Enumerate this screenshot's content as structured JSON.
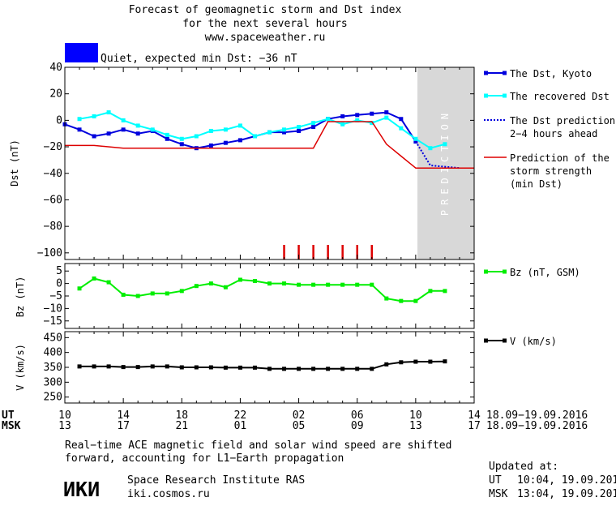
{
  "title_lines": [
    "Forecast of geomagnetic storm and Dst index",
    "for the next several hours",
    "www.spaceweather.ru"
  ],
  "status": {
    "text": "Quiet, expected min Dst: −36 nT",
    "color": "#0000ff"
  },
  "colors": {
    "dst_kyoto": "#0000dd",
    "dst_recovered": "#00ffff",
    "dst_prediction": "#0000dd",
    "storm_strength": "#dd0000",
    "bz": "#00ee00",
    "v": "#000000",
    "prediction_zone": "#d8d8d8"
  },
  "chart_data": [
    {
      "type": "line",
      "ylabel": "Dst (nT)",
      "ylim": [
        -105,
        40
      ],
      "yticks": [
        "40",
        "20",
        "0",
        "−20",
        "−40",
        "−60",
        "−80",
        "−100"
      ],
      "prediction_label": "PREDICTION",
      "legend": [
        {
          "lines": [
            "The Dst, Kyoto"
          ]
        },
        {
          "lines": [
            "The recovered Dst"
          ]
        },
        {
          "lines": [
            "The Dst prediction",
            "2−4 hours ahead"
          ]
        },
        {
          "lines": [
            "Prediction of the",
            "storm strength",
            "(min Dst)"
          ]
        }
      ],
      "series": [
        {
          "name": "The Dst, Kyoto",
          "x": [
            10,
            11,
            12,
            13,
            14,
            15,
            16,
            17,
            18,
            19,
            20,
            21,
            22,
            23,
            24,
            25,
            26,
            27,
            28,
            29,
            30,
            31,
            32,
            33,
            34
          ],
          "y": [
            -3,
            -7,
            -12,
            -10,
            -7,
            -10,
            -8,
            -14,
            -18,
            -21,
            -19,
            -17,
            -15,
            -12,
            -9,
            -9,
            -8,
            -5,
            1,
            3,
            4,
            5,
            6,
            1,
            -16
          ]
        },
        {
          "name": "The recovered Dst",
          "x": [
            11,
            12,
            13,
            14,
            15,
            16,
            17,
            18,
            19,
            20,
            21,
            22,
            23,
            24,
            25,
            26,
            27,
            28,
            29,
            30,
            31,
            32,
            33,
            34,
            35,
            36
          ],
          "y": [
            1,
            3,
            6,
            0,
            -4,
            -7,
            -11,
            -14,
            -12,
            -8,
            -7,
            -4,
            -12,
            -9,
            -7,
            -5,
            -2,
            1,
            -3,
            0,
            -2,
            2,
            -6,
            -14,
            -21,
            -18
          ]
        },
        {
          "name": "The Dst prediction 2−4 hours ahead",
          "x": [
            34,
            35,
            37
          ],
          "y": [
            -16,
            -34,
            -36
          ]
        },
        {
          "name": "Prediction of the storm strength (min Dst)",
          "x": [
            10,
            12,
            14,
            16,
            27,
            28,
            30,
            31,
            32,
            33,
            34,
            35,
            38
          ],
          "y": [
            -19,
            -19,
            -21,
            -21,
            -21,
            -1,
            -1,
            -1,
            -18,
            -27,
            -36,
            -36,
            -36
          ]
        }
      ],
      "storm_markers_x": [
        25,
        26,
        27,
        28,
        29,
        30,
        31
      ]
    },
    {
      "type": "line",
      "ylabel": "Bz (nT)",
      "ylim": [
        -18,
        8
      ],
      "yticks": [
        "5",
        "0",
        "−5",
        "−10",
        "−15"
      ],
      "legend": [
        {
          "lines": [
            "Bz (nT, GSM)"
          ]
        }
      ],
      "series": [
        {
          "name": "Bz (nT, GSM)",
          "x": [
            11,
            12,
            13,
            14,
            15,
            16,
            17,
            18,
            19,
            20,
            21,
            22,
            23,
            24,
            25,
            26,
            27,
            28,
            29,
            30,
            31,
            32,
            33,
            34,
            35,
            36
          ],
          "y": [
            -2,
            2,
            0.5,
            -4.5,
            -5,
            -4,
            -4,
            -3,
            -1,
            0,
            -1.5,
            1.5,
            1,
            0,
            0,
            -0.5,
            -0.5,
            -0.5,
            -0.5,
            -0.5,
            -0.5,
            -6,
            -7,
            -7,
            -3,
            -3
          ]
        }
      ]
    },
    {
      "type": "line",
      "ylabel": "V (km/s)",
      "ylim": [
        230,
        470
      ],
      "yticks": [
        "450",
        "400",
        "350",
        "300",
        "250"
      ],
      "legend": [
        {
          "lines": [
            "V (km/s)"
          ]
        }
      ],
      "series": [
        {
          "name": "V (km/s)",
          "x": [
            11,
            12,
            13,
            14,
            15,
            16,
            17,
            18,
            19,
            20,
            21,
            22,
            23,
            24,
            25,
            26,
            27,
            28,
            29,
            30,
            31,
            32,
            33,
            34,
            35,
            36
          ],
          "y": [
            353,
            353,
            353,
            351,
            351,
            353,
            353,
            350,
            350,
            350,
            349,
            349,
            349,
            345,
            345,
            345,
            345,
            345,
            345,
            345,
            345,
            360,
            367,
            369,
            369,
            370
          ]
        }
      ]
    }
  ],
  "time_axis": {
    "ut_label": "UT",
    "msk_label": "MSK",
    "ut_ticks": [
      "10",
      "14",
      "18",
      "22",
      "02",
      "06",
      "10",
      "14"
    ],
    "msk_ticks": [
      "13",
      "17",
      "21",
      "01",
      "05",
      "09",
      "13",
      "17"
    ],
    "ut_range": "18.09−19.09.2016",
    "msk_range": "18.09−19.09.2016"
  },
  "note_lines": [
    "Real−time ACE magnetic field and solar wind speed are shifted",
    "forward, accounting for L1−Earth propagation"
  ],
  "institute": {
    "logo": "ИКИ",
    "name": "Space Research Institute RAS",
    "url": "iki.cosmos.ru"
  },
  "updated": {
    "label": "Updated at:",
    "ut_label": "UT",
    "ut_value": "10:04, 19.09.2016",
    "msk_label": "MSK",
    "msk_value": "13:04, 19.09.2016"
  }
}
